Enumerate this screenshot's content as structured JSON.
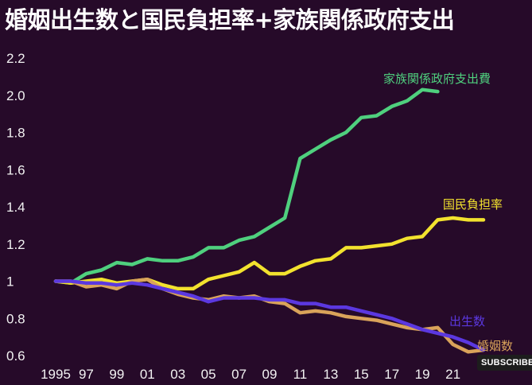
{
  "title": "婚姻出生数と国民負担率+家族関係政府支出",
  "subscribe_label": "SUBSCRIBE",
  "chart_data": {
    "type": "line",
    "title": "婚姻出生数と国民負担率+家族関係政府支出",
    "x_range": [
      1995,
      2023
    ],
    "ylim": [
      0.6,
      2.2
    ],
    "y_ticks": [
      2.2,
      2.0,
      1.8,
      1.6,
      1.4,
      1.2,
      1,
      0.8,
      0.6
    ],
    "y_tick_labels": [
      "2.2",
      "2.0",
      "1.8",
      "1.6",
      "1.4",
      "1.2",
      "1",
      "0.8",
      "0.6"
    ],
    "x_ticks": [
      1995,
      1997,
      1999,
      2001,
      2003,
      2005,
      2007,
      2009,
      2011,
      2013,
      2015,
      2017,
      2019,
      2021
    ],
    "x_tick_labels": [
      "1995",
      "97",
      "99",
      "01",
      "03",
      "05",
      "07",
      "09",
      "11",
      "13",
      "15",
      "17",
      "19",
      "21"
    ],
    "grid": false,
    "series": [
      {
        "name": "家族関係政府支出費",
        "color": "#4fd07e",
        "x": [
          1995,
          1996,
          1997,
          1998,
          1999,
          2000,
          2001,
          2002,
          2003,
          2004,
          2005,
          2006,
          2007,
          2008,
          2009,
          2010,
          2011,
          2012,
          2013,
          2014,
          2015,
          2016,
          2017,
          2018,
          2019,
          2020
        ],
        "y": [
          1.0,
          0.99,
          1.04,
          1.06,
          1.1,
          1.09,
          1.12,
          1.11,
          1.11,
          1.13,
          1.18,
          1.18,
          1.22,
          1.24,
          1.29,
          1.34,
          1.66,
          1.71,
          1.76,
          1.8,
          1.88,
          1.89,
          1.94,
          1.97,
          2.03,
          2.02
        ]
      },
      {
        "name": "国民負担率",
        "color": "#f2e22e",
        "x": [
          1995,
          1996,
          1997,
          1998,
          1999,
          2000,
          2001,
          2002,
          2003,
          2004,
          2005,
          2006,
          2007,
          2008,
          2009,
          2010,
          2011,
          2012,
          2013,
          2014,
          2015,
          2016,
          2017,
          2018,
          2019,
          2020,
          2021,
          2022,
          2023
        ],
        "y": [
          1.0,
          0.99,
          1.0,
          1.01,
          0.99,
          1.0,
          1.01,
          0.98,
          0.96,
          0.96,
          1.01,
          1.03,
          1.05,
          1.1,
          1.04,
          1.04,
          1.08,
          1.11,
          1.12,
          1.18,
          1.18,
          1.19,
          1.2,
          1.23,
          1.24,
          1.33,
          1.34,
          1.33,
          1.33
        ]
      },
      {
        "name": "出生数",
        "color": "#5b38e0",
        "x": [
          1995,
          1996,
          1997,
          1998,
          1999,
          2000,
          2001,
          2002,
          2003,
          2004,
          2005,
          2006,
          2007,
          2008,
          2009,
          2010,
          2011,
          2012,
          2013,
          2014,
          2015,
          2016,
          2017,
          2018,
          2019,
          2020,
          2021,
          2022,
          2023
        ],
        "y": [
          1.0,
          1.0,
          0.99,
          0.99,
          0.98,
          0.99,
          0.98,
          0.96,
          0.94,
          0.92,
          0.89,
          0.91,
          0.91,
          0.91,
          0.9,
          0.9,
          0.88,
          0.88,
          0.86,
          0.86,
          0.84,
          0.82,
          0.8,
          0.77,
          0.74,
          0.72,
          0.7,
          0.67,
          0.63
        ]
      },
      {
        "name": "婚姻数",
        "color": "#d9a35a",
        "x": [
          1995,
          1996,
          1997,
          1998,
          1999,
          2000,
          2001,
          2002,
          2003,
          2004,
          2005,
          2006,
          2007,
          2008,
          2009,
          2010,
          2011,
          2012,
          2013,
          2014,
          2015,
          2016,
          2017,
          2018,
          2019,
          2020,
          2021,
          2022,
          2023
        ],
        "y": [
          1.0,
          1.0,
          0.97,
          0.98,
          0.96,
          1.0,
          1.01,
          0.96,
          0.93,
          0.91,
          0.9,
          0.92,
          0.91,
          0.92,
          0.89,
          0.88,
          0.83,
          0.84,
          0.83,
          0.81,
          0.8,
          0.79,
          0.77,
          0.75,
          0.74,
          0.75,
          0.66,
          0.62,
          0.63
        ]
      }
    ]
  }
}
